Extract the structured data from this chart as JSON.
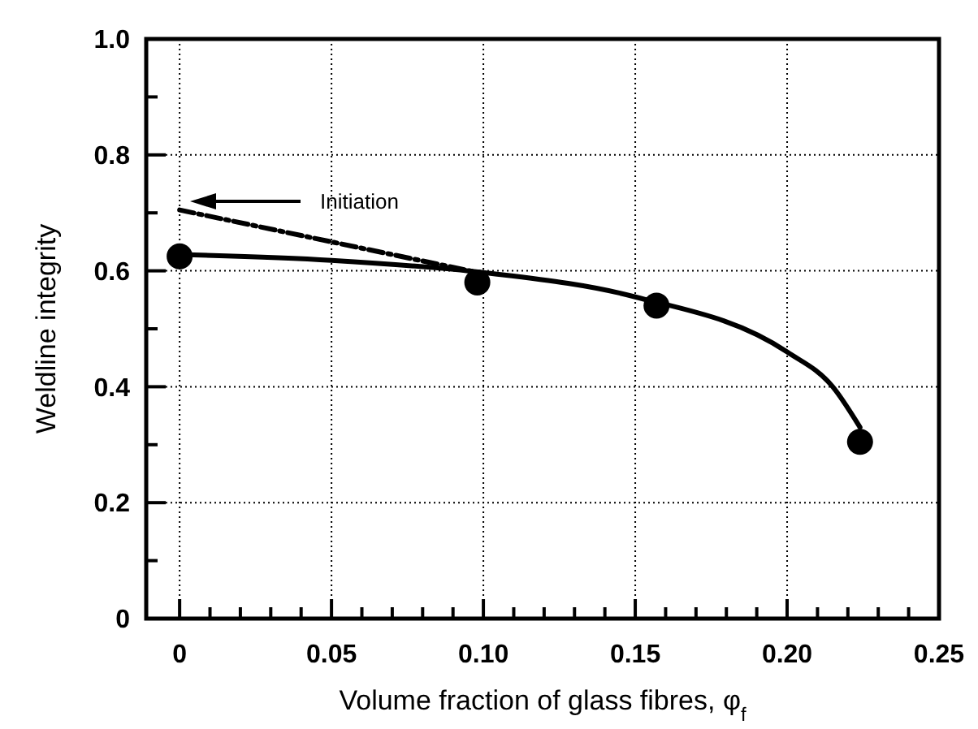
{
  "chart_data": {
    "type": "scatter",
    "xlabel": "Volume fraction of glass fibres, φ$_{f}$",
    "ylabel": "Weldline integrity",
    "xlim": [
      -0.011,
      0.25
    ],
    "ylim": [
      0,
      1.0
    ],
    "xticks": [
      {
        "value": 0,
        "label": "0"
      },
      0.05,
      {
        "value": 0.1,
        "label": "0.10"
      },
      0.15,
      {
        "value": 0.2,
        "label": "0.20"
      },
      0.25,
      {
        "value": 0.01,
        "label": null
      },
      {
        "value": 0.02,
        "label": null
      },
      {
        "value": 0.03,
        "label": null
      },
      {
        "value": 0.04,
        "label": null
      },
      {
        "value": 0.06,
        "label": null
      },
      {
        "value": 0.07,
        "label": null
      },
      {
        "value": 0.08,
        "label": null
      },
      {
        "value": 0.09,
        "label": null
      },
      {
        "value": 0.11,
        "label": null
      },
      {
        "value": 0.12,
        "label": null
      },
      {
        "value": 0.13,
        "label": null
      },
      {
        "value": 0.14,
        "label": null
      },
      {
        "value": 0.16,
        "label": null
      },
      {
        "value": 0.17,
        "label": null
      },
      {
        "value": 0.18,
        "label": null
      },
      {
        "value": 0.19,
        "label": null
      },
      {
        "value": 0.21,
        "label": null
      },
      {
        "value": 0.22,
        "label": null
      },
      {
        "value": 0.23,
        "label": null
      },
      {
        "value": 0.24,
        "label": null
      }
    ],
    "yticks": [
      0,
      0.2,
      0.4,
      0.6,
      0.8,
      {
        "value": 1,
        "label": "1.0"
      },
      {
        "value": 0.1,
        "label": null
      },
      {
        "value": 0.3,
        "label": null
      },
      {
        "value": 0.5,
        "label": null
      },
      {
        "value": 0.7,
        "label": null
      },
      {
        "value": 0.9,
        "label": null
      }
    ],
    "grid": true,
    "series": [
      {
        "color": "#000000",
        "marker": "circle",
        "x": [
          0,
          0.098,
          0.157,
          0.224
        ],
        "values": [
          0.625,
          0.58,
          0.54,
          0.305
        ]
      },
      {
        "type": "line",
        "color": "#000000",
        "line_style": "solid",
        "x": [
          0,
          0.05,
          0.1,
          0.15,
          0.2,
          0.215,
          0.224
        ],
        "values": [
          0.628,
          0.618,
          0.597,
          0.555,
          0.46,
          0.4,
          0.33
        ]
      },
      {
        "type": "line",
        "color": "#000000",
        "line_style": "dashed",
        "x": [
          0,
          0.1
        ],
        "values": [
          0.705,
          0.595
        ]
      }
    ],
    "annotations": [
      "Initiation"
    ]
  }
}
